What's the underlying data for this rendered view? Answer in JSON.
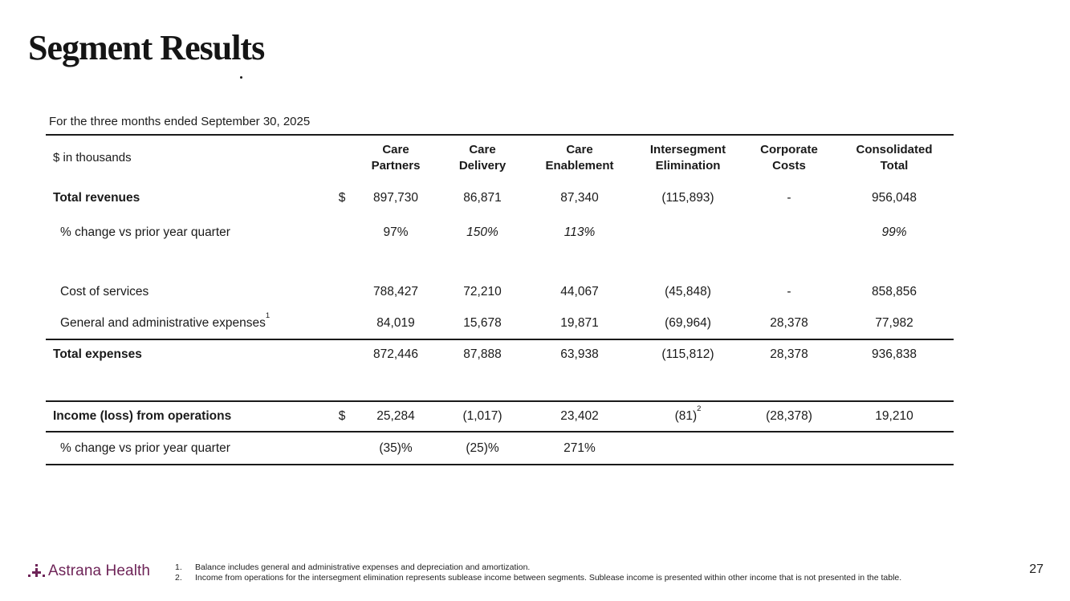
{
  "slide": {
    "title": "Segment Results",
    "page_number": "27"
  },
  "table": {
    "caption": "For the three months ended September 30, 2025",
    "unit_label": "$ in thousands",
    "columns": [
      "Care Partners",
      "Care Delivery",
      "Care Enablement",
      "Intersegment Elimination",
      "Corporate Costs",
      "Consolidated Total"
    ],
    "rows": [
      {
        "type": "data",
        "label": "Total revenues",
        "bold": true,
        "currency": "$",
        "cells": [
          {
            "text": "897,730"
          },
          {
            "text": "86,871"
          },
          {
            "text": "87,340"
          },
          {
            "text": "(115,893)"
          },
          {
            "text": "-"
          },
          {
            "text": "956,048"
          }
        ]
      },
      {
        "type": "data",
        "label": "% change vs prior year quarter",
        "indent": true,
        "cells": [
          {
            "text": "97%"
          },
          {
            "text": "150%",
            "italic": true
          },
          {
            "text": "113%",
            "italic": true
          },
          {
            "text": ""
          },
          {
            "text": ""
          },
          {
            "text": "99%",
            "italic": true
          }
        ]
      },
      {
        "type": "spacer"
      },
      {
        "type": "data",
        "label": "Cost of services",
        "indent": true,
        "cells": [
          {
            "text": "788,427"
          },
          {
            "text": "72,210"
          },
          {
            "text": "44,067"
          },
          {
            "text": "(45,848)"
          },
          {
            "text": "-"
          },
          {
            "text": "858,856"
          }
        ]
      },
      {
        "type": "data",
        "label": "General and administrative expenses",
        "label_sup": "1",
        "indent": true,
        "cells": [
          {
            "text": "84,019"
          },
          {
            "text": "15,678"
          },
          {
            "text": "19,871"
          },
          {
            "text": "(69,964)"
          },
          {
            "text": "28,378"
          },
          {
            "text": "77,982"
          }
        ]
      },
      {
        "type": "data",
        "label": "Total expenses",
        "bold": true,
        "rule_top": true,
        "cells": [
          {
            "text": "872,446"
          },
          {
            "text": "87,888"
          },
          {
            "text": "63,938"
          },
          {
            "text": "(115,812)"
          },
          {
            "text": "28,378"
          },
          {
            "text": "936,838"
          }
        ]
      },
      {
        "type": "spacer"
      },
      {
        "type": "data",
        "label": "Income (loss) from operations",
        "bold": true,
        "currency": "$",
        "rule_top": true,
        "rule_bottom": true,
        "cells": [
          {
            "text": "25,284"
          },
          {
            "text": "(1,017)"
          },
          {
            "text": "23,402"
          },
          {
            "text": "(81)",
            "sup": "2"
          },
          {
            "text": "(28,378)"
          },
          {
            "text": "19,210"
          }
        ]
      },
      {
        "type": "data",
        "label": "% change vs prior year quarter",
        "indent": true,
        "cells": [
          {
            "text": "(35)%"
          },
          {
            "text": "(25)%"
          },
          {
            "text": "271%"
          },
          {
            "text": ""
          },
          {
            "text": ""
          },
          {
            "text": ""
          }
        ]
      }
    ]
  },
  "footer": {
    "logo_text": "Astrana Health",
    "footnotes": [
      {
        "num": "1.",
        "text": "Balance includes general and administrative expenses and depreciation and amortization."
      },
      {
        "num": "2.",
        "text": "Income from operations for the intersegment elimination represents sublease income between segments. Sublease income is presented within other income that is not presented in the table."
      }
    ]
  },
  "colors": {
    "brand": "#6E2458",
    "text": "#1A1A1A",
    "rule": "#1A1A1A"
  }
}
